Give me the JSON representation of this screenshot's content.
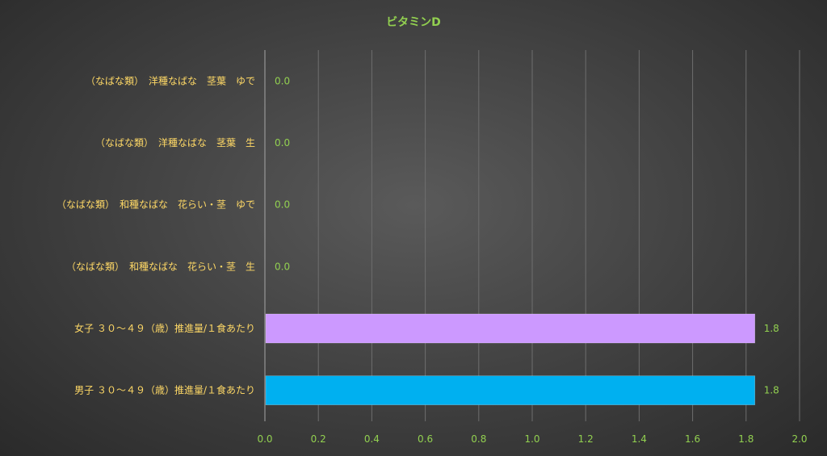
{
  "chart_data": {
    "type": "bar",
    "orientation": "horizontal",
    "title": "ビタミンD",
    "categories": [
      "（なばな類）　洋種なばな　茎葉　ゆで",
      "（なばな類）　洋種なばな　茎葉　生",
      "（なばな類）　和種なばな　花らい・茎　ゆで",
      "（なばな類）　和種なばな　花らい・茎　生",
      "女子 ３０～４９（歳）推進量/１食あたり",
      "男子 ３０～４９（歳）推進量/１食あたり"
    ],
    "values": [
      0.0,
      0.0,
      0.0,
      0.0,
      1.83,
      1.83
    ],
    "value_labels": [
      "0.0",
      "0.0",
      "0.0",
      "0.0",
      "1.8",
      "1.8"
    ],
    "bar_colors": [
      "#8faadc",
      "#8faadc",
      "#8faadc",
      "#8faadc",
      "#cc99ff",
      "#00b0f0"
    ],
    "xlim": [
      0,
      2.0
    ],
    "xticks": [
      "0.0",
      "0.2",
      "0.4",
      "0.6",
      "0.8",
      "1.0",
      "1.2",
      "1.4",
      "1.6",
      "1.8",
      "2.0"
    ],
    "grid": true,
    "legend": "none"
  }
}
